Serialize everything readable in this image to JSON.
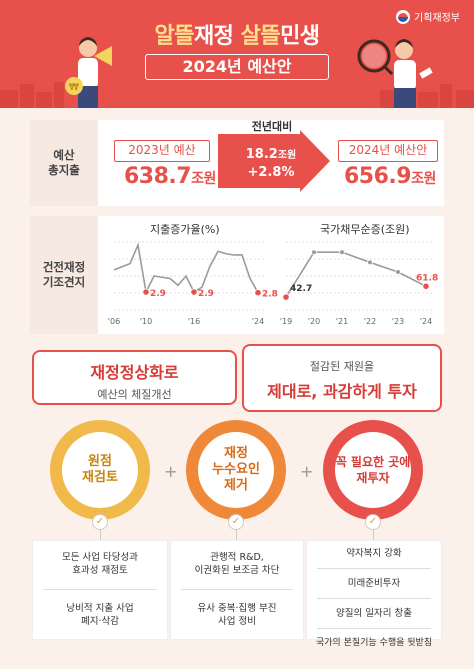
{
  "header": {
    "ministry": "기획재정부",
    "title_part1": "알뜰",
    "title_part2": "재정 ",
    "title_part3": "살뜰",
    "title_part4": "민생",
    "subtitle": "2024년 예산안"
  },
  "total_expenditure": {
    "label": "예산\n총지출",
    "prev_year_label": "2023년 예산",
    "prev_value": "638.7",
    "prev_unit": "조원",
    "change_label": "전년대비",
    "change_amount": "18.2",
    "change_amount_unit": "조원",
    "change_pct": "+2.8%",
    "next_year_label": "2024년 예산안",
    "next_value": "656.9",
    "next_unit": "조원"
  },
  "fiscal_soundness": {
    "label": "건전재정\n기조견지",
    "chart_data": [
      {
        "type": "line",
        "title": "지출증가율(%)",
        "x_ticks": [
          "'06",
          "'10",
          "'16",
          "'24"
        ],
        "x": [
          2006,
          2007,
          2008,
          2009,
          2010,
          2011,
          2012,
          2013,
          2014,
          2015,
          2016,
          2017,
          2018,
          2019,
          2020,
          2021,
          2022,
          2023,
          2024
        ],
        "values": [
          6.5,
          7.0,
          7.5,
          10.5,
          2.9,
          5.5,
          5.3,
          5.1,
          4.0,
          5.5,
          2.9,
          3.7,
          7.1,
          9.5,
          9.1,
          8.9,
          8.9,
          5.1,
          2.8
        ],
        "labels": [
          {
            "x": 2010,
            "text": "2.9"
          },
          {
            "x": 2016,
            "text": "2.9"
          },
          {
            "x": 2024,
            "text": "2.8"
          }
        ],
        "ylim": [
          0,
          11
        ]
      },
      {
        "type": "line",
        "title": "국가채무순증(조원)",
        "x_ticks": [
          "'19",
          "'20",
          "'21",
          "'22",
          "'23",
          "'24"
        ],
        "x": [
          2019,
          2020,
          2021,
          2022,
          2023,
          2024
        ],
        "values": [
          42.7,
          122.0,
          122.0,
          104.0,
          87.0,
          61.8
        ],
        "labels": [
          {
            "x": 2019,
            "text": "42.7"
          },
          {
            "x": 2024,
            "text": "61.8"
          }
        ],
        "ylim": [
          20,
          140
        ]
      }
    ]
  },
  "banners": {
    "left_title": "재정정상화로",
    "left_sub": "예산의 체질개선",
    "right_sub": "절감된 재원을",
    "right_title": "제대로, 과감하게 투자"
  },
  "pillars": [
    {
      "label": "원점\n재검토",
      "color": "#f0b94a",
      "items": [
        "모든 사업 타당성과\n효과성 재점토",
        "낭비적 지출 사업\n폐지·삭감"
      ]
    },
    {
      "label": "재정\n누수요인\n제거",
      "color": "#f0883a",
      "items": [
        "관행적 R&D,\n이권화된 보조금 차단",
        "유사 중복·집행 부진\n사업 정비"
      ]
    },
    {
      "label": "꼭 필요한 곳에\n재투자",
      "color": "#e8514b",
      "items": [
        "약자복지 강화",
        "미래준비투자",
        "양질의 일자리 창출",
        "국가의 본질기능 수행을 뒷받침"
      ]
    }
  ],
  "plus_sign": "+"
}
